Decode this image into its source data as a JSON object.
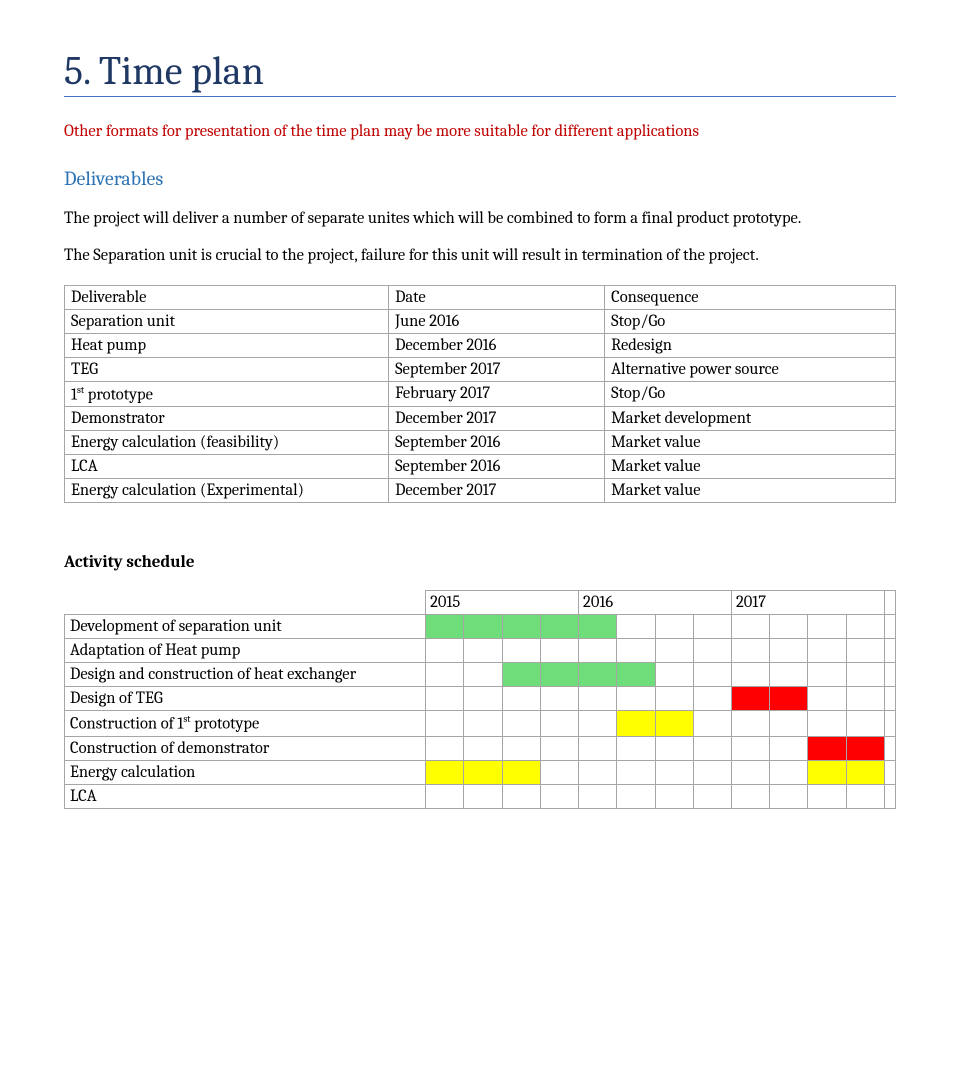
{
  "colors": {
    "heading": "#1f3864",
    "rule": "#4472c4",
    "subheading": "#2e74b5",
    "red": "#c00000",
    "border": "#a6a6a6",
    "green": "#70cf7a",
    "yellow": "#ffff00",
    "orange": "#ff0000",
    "redcell": "#ff0000"
  },
  "heading": "5.  Time plan",
  "intro_red": "Other formats for presentation of the time plan may be more suitable for different applications",
  "sub1": "Deliverables",
  "para1": "The project will deliver a number of separate unites which will be combined to form a final product prototype.",
  "para2": "The Separation unit is crucial to the project, failure for this unit will result in termination of the project.",
  "deliverables": {
    "headers": [
      "Deliverable",
      "Date",
      "Consequence"
    ],
    "rows": [
      [
        "Separation unit",
        "June 2016",
        "Stop/Go"
      ],
      [
        "Heat pump",
        "December 2016",
        "Redesign"
      ],
      [
        "TEG",
        "September 2017",
        "Alternative power source"
      ],
      [
        "1st prototype",
        "February 2017",
        "Stop/Go"
      ],
      [
        "Demonstrator",
        "December 2017",
        "Market development"
      ],
      [
        "Energy calculation (feasibility)",
        "September 2016",
        "Market value"
      ],
      [
        "LCA",
        "September 2016",
        "Market value"
      ],
      [
        "Energy calculation (Experimental)",
        "December 2017",
        "Market value"
      ]
    ]
  },
  "activity_title": "Activity schedule",
  "schedule": {
    "years": [
      "2015",
      "2016",
      "2017"
    ],
    "quarters_per_year": 4,
    "palette": {
      "g": "#6fde7a",
      "y": "#ffff00",
      "r": "#ff0000",
      "": "#ffffff"
    },
    "rows": [
      {
        "label": "Development of separation unit",
        "cells": [
          "g",
          "g",
          "g",
          "g",
          "g",
          "",
          "",
          "",
          "",
          "",
          "",
          ""
        ]
      },
      {
        "label": "Adaptation of Heat pump",
        "cells": [
          "",
          "",
          "",
          "",
          "",
          "",
          "",
          "",
          "",
          "",
          "",
          ""
        ]
      },
      {
        "label": "Design and construction of heat exchanger",
        "cells": [
          "",
          "",
          "g",
          "g",
          "g",
          "g",
          "",
          "",
          "",
          "",
          "",
          ""
        ]
      },
      {
        "label": "Design of TEG",
        "cells": [
          "",
          "",
          "",
          "",
          "",
          "",
          "",
          "",
          "r",
          "r",
          "",
          ""
        ]
      },
      {
        "label": "Construction of 1st prototype",
        "cells": [
          "",
          "",
          "",
          "",
          "",
          "y",
          "y",
          "",
          "",
          "",
          "",
          ""
        ]
      },
      {
        "label": "Construction of demonstrator",
        "cells": [
          "",
          "",
          "",
          "",
          "",
          "",
          "",
          "",
          "",
          "",
          "r",
          "r"
        ]
      },
      {
        "label": "Energy calculation",
        "cells": [
          "y",
          "y",
          "y",
          "",
          "",
          "",
          "",
          "",
          "",
          "",
          "y",
          "y"
        ]
      },
      {
        "label": "LCA",
        "cells": [
          "",
          "",
          "",
          "",
          "",
          "",
          "",
          "",
          "",
          "",
          "",
          ""
        ]
      }
    ]
  }
}
